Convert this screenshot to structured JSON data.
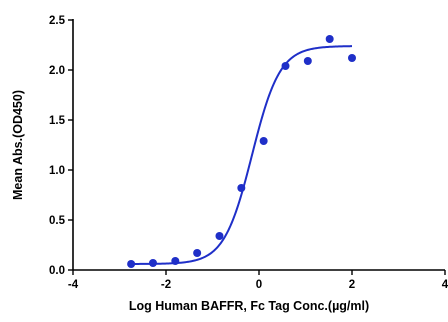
{
  "chart_data": {
    "type": "scatter",
    "title": "",
    "xlabel": "Log Human BAFFR, Fc Tag Conc.(µg/ml)",
    "ylabel": "Mean Abs.(OD450)",
    "xlim": [
      -4,
      4
    ],
    "ylim": [
      0,
      2.5
    ],
    "x_ticks": [
      -4,
      -2,
      0,
      2,
      4
    ],
    "y_ticks": [
      0.0,
      0.5,
      1.0,
      1.5,
      2.0,
      2.5
    ],
    "x_tick_labels": [
      "-4",
      "-2",
      "0",
      "2",
      "4"
    ],
    "y_tick_labels": [
      "0.0",
      "0.5",
      "1.0",
      "1.5",
      "2.0",
      "2.5"
    ],
    "grid": false,
    "color": "#1f2fc8",
    "points": [
      {
        "x": -2.75,
        "y": 0.06
      },
      {
        "x": -2.28,
        "y": 0.07
      },
      {
        "x": -1.8,
        "y": 0.09
      },
      {
        "x": -1.33,
        "y": 0.17
      },
      {
        "x": -0.85,
        "y": 0.34
      },
      {
        "x": -0.38,
        "y": 0.82
      },
      {
        "x": 0.1,
        "y": 1.29
      },
      {
        "x": 0.57,
        "y": 2.04
      },
      {
        "x": 1.05,
        "y": 2.09
      },
      {
        "x": 1.52,
        "y": 2.31
      },
      {
        "x": 2.0,
        "y": 2.12
      }
    ],
    "fit_curve": {
      "model": "4PL",
      "bottom": 0.06,
      "top": 2.24,
      "log_ec50": -0.15,
      "hill_slope": 1.45,
      "x_range": [
        -2.75,
        2.0
      ]
    }
  }
}
